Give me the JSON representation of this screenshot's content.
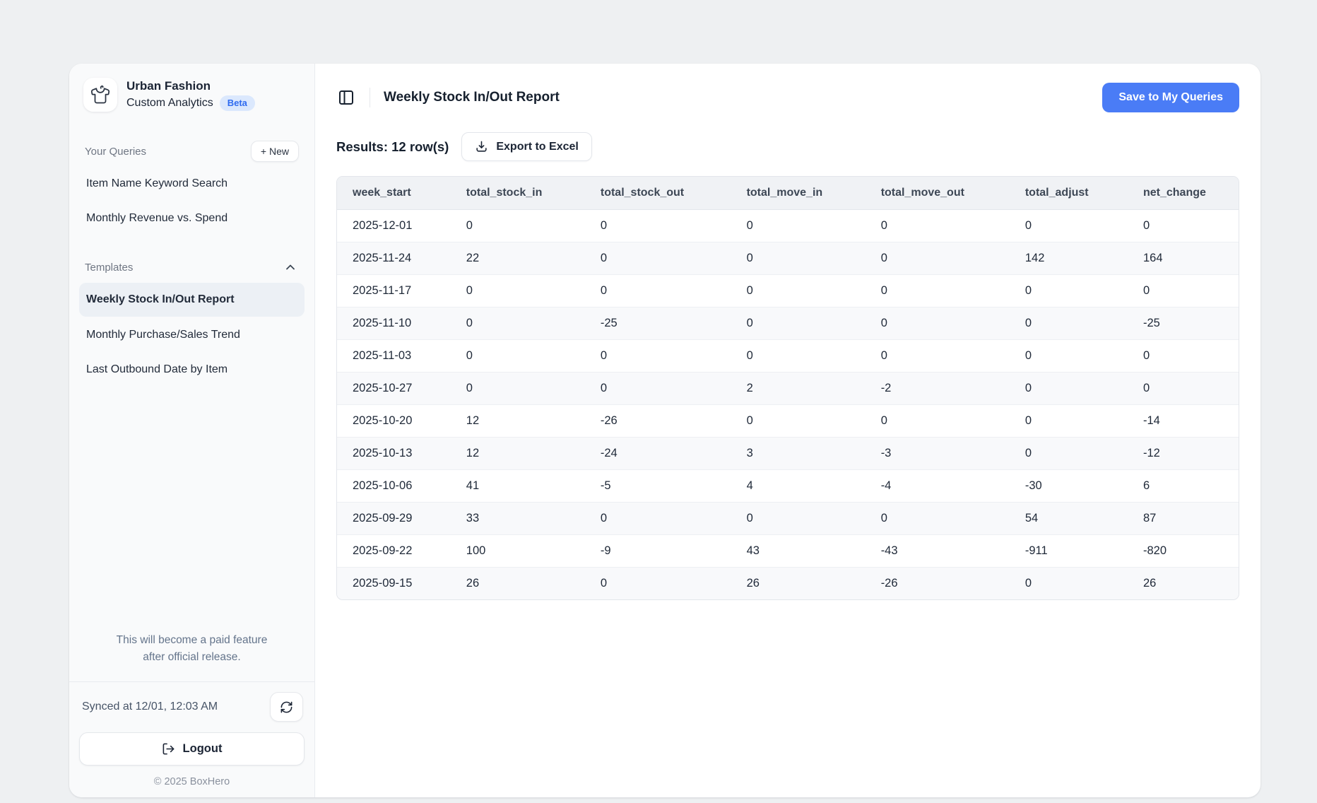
{
  "app": {
    "workspace_name": "Urban Fashion",
    "app_name": "Custom Analytics",
    "badge": "Beta"
  },
  "sidebar": {
    "your_queries_label": "Your Queries",
    "new_button_label": "+ New",
    "queries": [
      "Item Name Keyword Search",
      "Monthly Revenue vs. Spend"
    ],
    "templates_label": "Templates",
    "templates": [
      {
        "label": "Weekly Stock In/Out Report",
        "selected": true
      },
      {
        "label": "Monthly Purchase/Sales Trend",
        "selected": false
      },
      {
        "label": "Last Outbound Date by Item",
        "selected": false
      }
    ],
    "paid_note_line1": "This will become a paid feature",
    "paid_note_line2": "after official release.",
    "synced_label": "Synced at 12/01, 12:03 AM",
    "logout_label": "Logout",
    "footer": "© 2025 BoxHero"
  },
  "header": {
    "title": "Weekly Stock In/Out Report",
    "save_button_label": "Save to My Queries"
  },
  "results": {
    "summary": "Results: 12 row(s)",
    "export_button_label": "Export to Excel"
  },
  "table": {
    "columns": [
      "week_start",
      "total_stock_in",
      "total_stock_out",
      "total_move_in",
      "total_move_out",
      "total_adjust",
      "net_change"
    ],
    "rows": [
      [
        "2025-12-01",
        "0",
        "0",
        "0",
        "0",
        "0",
        "0"
      ],
      [
        "2025-11-24",
        "22",
        "0",
        "0",
        "0",
        "142",
        "164"
      ],
      [
        "2025-11-17",
        "0",
        "0",
        "0",
        "0",
        "0",
        "0"
      ],
      [
        "2025-11-10",
        "0",
        "-25",
        "0",
        "0",
        "0",
        "-25"
      ],
      [
        "2025-11-03",
        "0",
        "0",
        "0",
        "0",
        "0",
        "0"
      ],
      [
        "2025-10-27",
        "0",
        "0",
        "2",
        "-2",
        "0",
        "0"
      ],
      [
        "2025-10-20",
        "12",
        "-26",
        "0",
        "0",
        "0",
        "-14"
      ],
      [
        "2025-10-13",
        "12",
        "-24",
        "3",
        "-3",
        "0",
        "-12"
      ],
      [
        "2025-10-06",
        "41",
        "-5",
        "4",
        "-4",
        "-30",
        "6"
      ],
      [
        "2025-09-29",
        "33",
        "0",
        "0",
        "0",
        "54",
        "87"
      ],
      [
        "2025-09-22",
        "100",
        "-9",
        "43",
        "-43",
        "-911",
        "-820"
      ],
      [
        "2025-09-15",
        "26",
        "0",
        "26",
        "-26",
        "0",
        "26"
      ]
    ]
  },
  "icons": {
    "logo": "tshirt-icon",
    "sidebar_toggle": "panel-left-icon",
    "templates_collapse": "chevron-up-icon",
    "export": "download-icon",
    "sync": "refresh-icon",
    "logout": "logout-icon"
  },
  "colors": {
    "accent_blue": "#4a7cf6",
    "badge_bg": "#dbe8fd",
    "badge_text": "#2e6bf0",
    "page_bg": "#eef0f2",
    "sidebar_bg": "#f9fafb",
    "selected_item_bg": "#ecf0f5",
    "table_header_bg": "#f0f2f5",
    "row_stripe_bg": "#f8f9fb"
  }
}
